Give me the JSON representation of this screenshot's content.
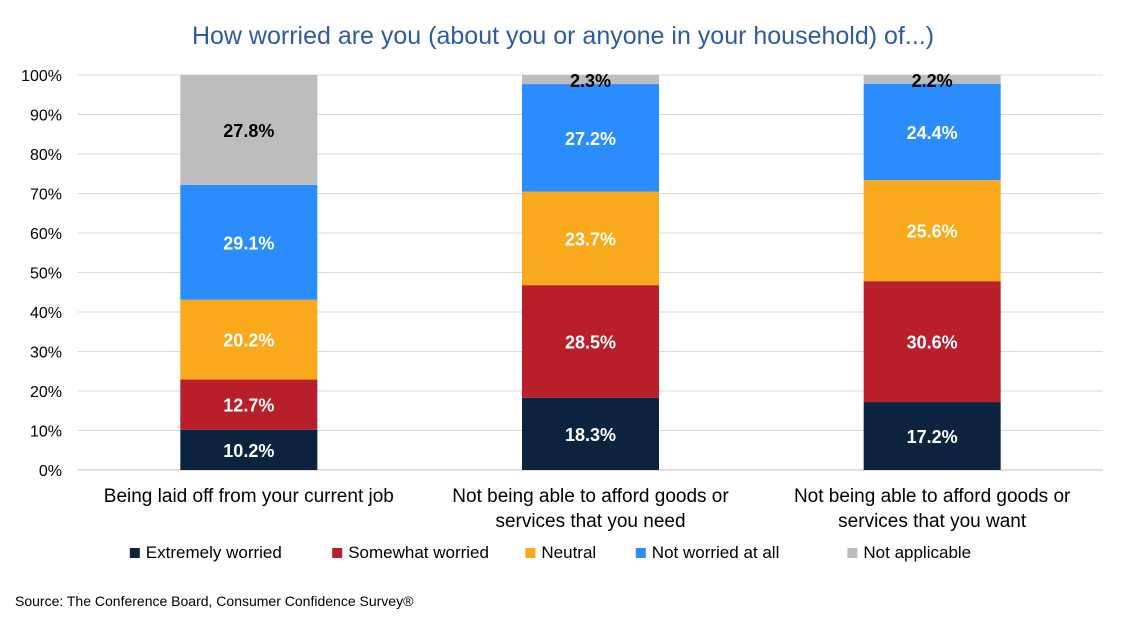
{
  "source": "Source: The Conference Board, Consumer Confidence Survey®",
  "chart_data": {
    "type": "bar",
    "stacked": true,
    "title": "How worried are you (about you or anyone in your household) of...)",
    "xlabel": "",
    "ylabel": "",
    "ylim": [
      0,
      100
    ],
    "yticks": [
      "0%",
      "10%",
      "20%",
      "30%",
      "40%",
      "50%",
      "60%",
      "70%",
      "80%",
      "90%",
      "100%"
    ],
    "grid": true,
    "legend_position": "bottom",
    "categories": [
      [
        "Being laid off from your current job"
      ],
      [
        "Not being able to afford goods or",
        "services that you need"
      ],
      [
        "Not being able to afford goods or",
        "services that you want"
      ]
    ],
    "series": [
      {
        "name": "Extremely worried",
        "color": "#0c2340",
        "label_color": "#ffffff",
        "values": [
          10.2,
          18.3,
          17.2
        ],
        "labels": [
          "10.2%",
          "18.3%",
          "17.2%"
        ]
      },
      {
        "name": "Somewhat worried",
        "color": "#b81f2b",
        "label_color": "#ffffff",
        "values": [
          12.7,
          28.5,
          30.6
        ],
        "labels": [
          "12.7%",
          "28.5%",
          "30.6%"
        ]
      },
      {
        "name": "Neutral",
        "color": "#f8aa1c",
        "label_color": "#ffffff",
        "values": [
          20.2,
          23.7,
          25.6
        ],
        "labels": [
          "20.2%",
          "23.7%",
          "25.6%"
        ]
      },
      {
        "name": "Not worried at all",
        "color": "#2b8cfe",
        "label_color": "#ffffff",
        "values": [
          29.1,
          27.2,
          24.4
        ],
        "labels": [
          "29.1%",
          "27.2%",
          "24.4%"
        ]
      },
      {
        "name": "Not applicable",
        "color": "#bdbdbd",
        "label_color": "#000000",
        "values": [
          27.8,
          2.3,
          2.2
        ],
        "labels": [
          "27.8%",
          "2.3%",
          "2.2%"
        ]
      }
    ]
  }
}
